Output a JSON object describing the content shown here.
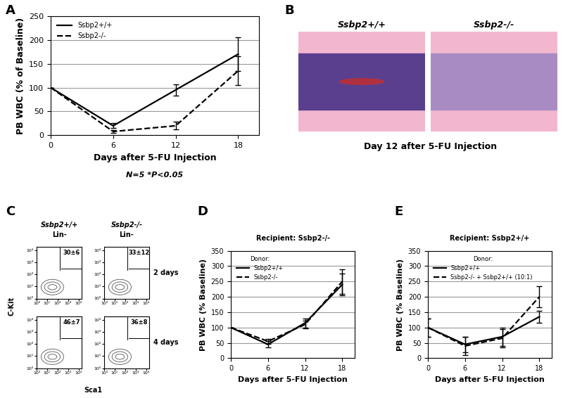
{
  "chart_data": [
    {
      "label": "A",
      "type": "line",
      "x": [
        0,
        6,
        12,
        18
      ],
      "xlabel": "Days after 5-FU Injection",
      "ylabel": "PB WBC (% of Baseline)",
      "annotation": "N=5 *P<0.05",
      "xlim": [
        0,
        20
      ],
      "xticks": [
        0,
        6,
        12,
        18
      ],
      "ylim": [
        0,
        250
      ],
      "yticks": [
        0,
        50,
        100,
        150,
        200,
        250
      ],
      "grid": true,
      "legend": "upper left",
      "series": [
        {
          "name": "Ssbp2+/+",
          "color": "#000000",
          "line_style": "solid",
          "values": [
            100,
            20,
            95,
            170
          ],
          "error": [
            0,
            5,
            12,
            35
          ]
        },
        {
          "name": "Ssbp2-/-",
          "color": "#000000",
          "line_style": "dashed",
          "values": [
            100,
            8,
            20,
            135
          ],
          "error": [
            0,
            3,
            8,
            30
          ]
        }
      ]
    },
    {
      "label": "D",
      "type": "line",
      "x": [
        0,
        6,
        12,
        18
      ],
      "xlabel": "Days after 5-FU Injection",
      "ylabel": "PB WBC (% Baseline)",
      "recipient": "Recipient: Ssbp2-/-",
      "legend_title": "Donor:",
      "xlim": [
        0,
        20
      ],
      "xticks": [
        0,
        6,
        12,
        18
      ],
      "ylim": [
        0,
        350
      ],
      "yticks": [
        0,
        50,
        100,
        150,
        200,
        250,
        300,
        350
      ],
      "grid": true,
      "legend": "upper left",
      "series": [
        {
          "name": "Ssbp2+/+",
          "color": "#000000",
          "line_style": "solid",
          "values": [
            100,
            45,
            115,
            240
          ],
          "error": [
            0,
            10,
            15,
            35
          ]
        },
        {
          "name": "Ssbp2-/-",
          "color": "#000000",
          "line_style": "dashed",
          "values": [
            100,
            55,
            110,
            250
          ],
          "error": [
            0,
            8,
            12,
            40
          ]
        }
      ]
    },
    {
      "label": "E",
      "type": "line",
      "x": [
        0,
        6,
        12,
        18
      ],
      "xlabel": "Days after 5-FU Injection",
      "ylabel": "PB WBC (% Baseline)",
      "recipient": "Recipient: Ssbp2+/+",
      "legend_title": "Donor:",
      "xlim": [
        0,
        20
      ],
      "xticks": [
        0,
        6,
        12,
        18
      ],
      "ylim": [
        0,
        350
      ],
      "yticks": [
        0,
        50,
        100,
        150,
        200,
        250,
        300,
        350
      ],
      "grid": true,
      "legend": "upper left",
      "series": [
        {
          "name": "Ssbp2+/+",
          "color": "#000000",
          "line_style": "solid",
          "values": [
            100,
            45,
            70,
            135
          ],
          "error": [
            30,
            25,
            30,
            20
          ]
        },
        {
          "name": "Ssbp2-/- + Ssbp2+/+ (10:1)",
          "color": "#000000",
          "line_style": "dashed",
          "values": [
            100,
            40,
            65,
            200
          ],
          "error": [
            30,
            30,
            30,
            35
          ]
        }
      ]
    }
  ],
  "images": {
    "label": "B",
    "titles": [
      "Ssbp2+/+",
      "Ssbp2-/-"
    ],
    "caption": "Day 12 after 5-FU Injection"
  },
  "flow": {
    "label": "C",
    "columns": [
      {
        "genotype": "Ssbp2+/+",
        "gate": "Lin-"
      },
      {
        "genotype": "Ssbp2-/-",
        "gate": "Lin-"
      }
    ],
    "rows": [
      "2 days",
      "4 days"
    ],
    "percent_labels": [
      [
        "30±6",
        "33±12"
      ],
      [
        "46±7",
        "36±8"
      ]
    ],
    "xlabel": "Sca1",
    "ylabel": "C-Kit",
    "log": true,
    "xlim": [
      1,
      20000
    ],
    "ylim": [
      1,
      20000
    ],
    "xticks": [
      {
        "value": 1,
        "label": "10⁰"
      },
      {
        "value": 10,
        "label": "10¹"
      },
      {
        "value": 100,
        "label": "10²"
      },
      {
        "value": 1000,
        "label": "10³"
      },
      {
        "value": 10000,
        "label": "10⁴"
      }
    ],
    "yticks": [
      {
        "value": 1,
        "label": "10⁰"
      },
      {
        "value": 10,
        "label": "10¹"
      },
      {
        "value": 100,
        "label": "10²"
      },
      {
        "value": 1000,
        "label": "10³"
      },
      {
        "value": 10000,
        "label": "10⁴"
      }
    ]
  }
}
